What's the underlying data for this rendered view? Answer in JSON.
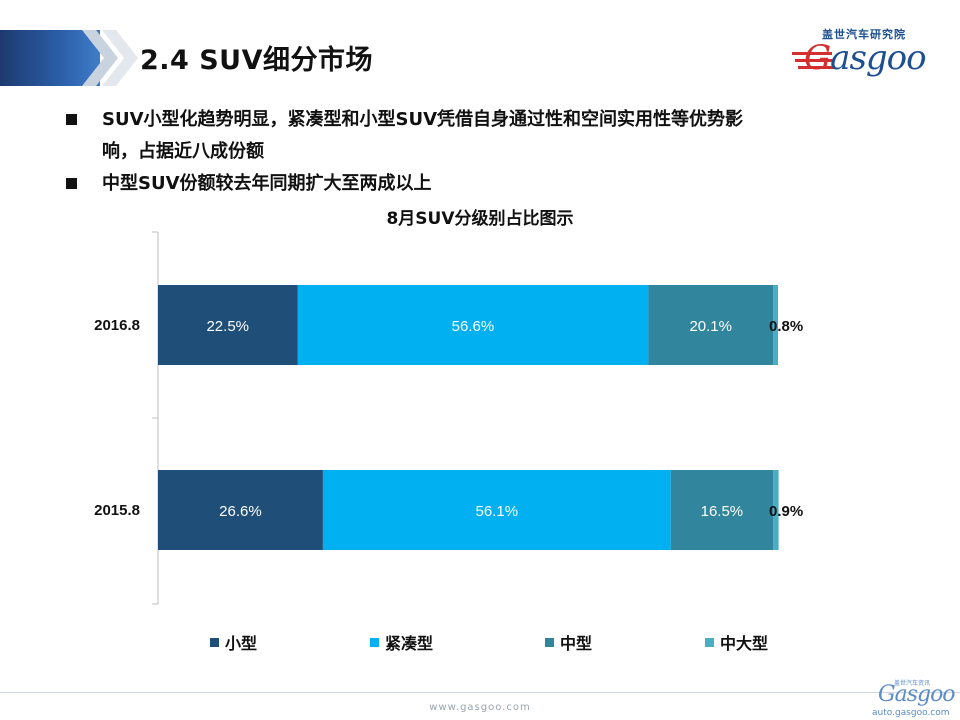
{
  "header": {
    "title": "2.4  SUV细分市场",
    "logo_cn": "盖世汽车研究院",
    "logo_word_first": "G",
    "logo_word_rest": "asgoo"
  },
  "bullets": [
    {
      "text": "SUV小型化趋势明显，紧凑型和小型SUV凭借自身通过性和空间实用性等优势影"
    },
    {
      "text": "响，占据近八成份额"
    },
    {
      "text": "中型SUV份额较去年同期扩大至两成以上"
    }
  ],
  "chart_data": {
    "type": "bar",
    "orientation": "horizontal",
    "stacked": "percent",
    "title": "8月SUV分级别占比图示",
    "categories": [
      "2016.8",
      "2015.8"
    ],
    "series": [
      {
        "name": "小型",
        "values": [
          22.5,
          26.6
        ],
        "labels": [
          "22.5%",
          "26.6%"
        ]
      },
      {
        "name": "紧凑型",
        "values": [
          56.6,
          56.1
        ],
        "labels": [
          "56.6%",
          "56.1%"
        ]
      },
      {
        "name": "中型",
        "values": [
          20.1,
          16.5
        ],
        "labels": [
          "20.1%",
          "16.5%"
        ]
      },
      {
        "name": "中大型",
        "values": [
          0.8,
          0.9
        ],
        "labels": [
          "0.8%",
          "0.9%"
        ]
      }
    ],
    "xlim": [
      0,
      100
    ],
    "legend": "bottom",
    "grid": false
  },
  "colors": {
    "small": "#1f4e79",
    "compact": "#00b0f0",
    "medium": "#31859c",
    "large": "#4bacc6"
  },
  "footer": {
    "url": "www.gasgoo.com",
    "logo_cn": "盖世汽车资讯",
    "logo_word": "Gasgoo",
    "logo_url": "auto.gasgoo.com"
  }
}
